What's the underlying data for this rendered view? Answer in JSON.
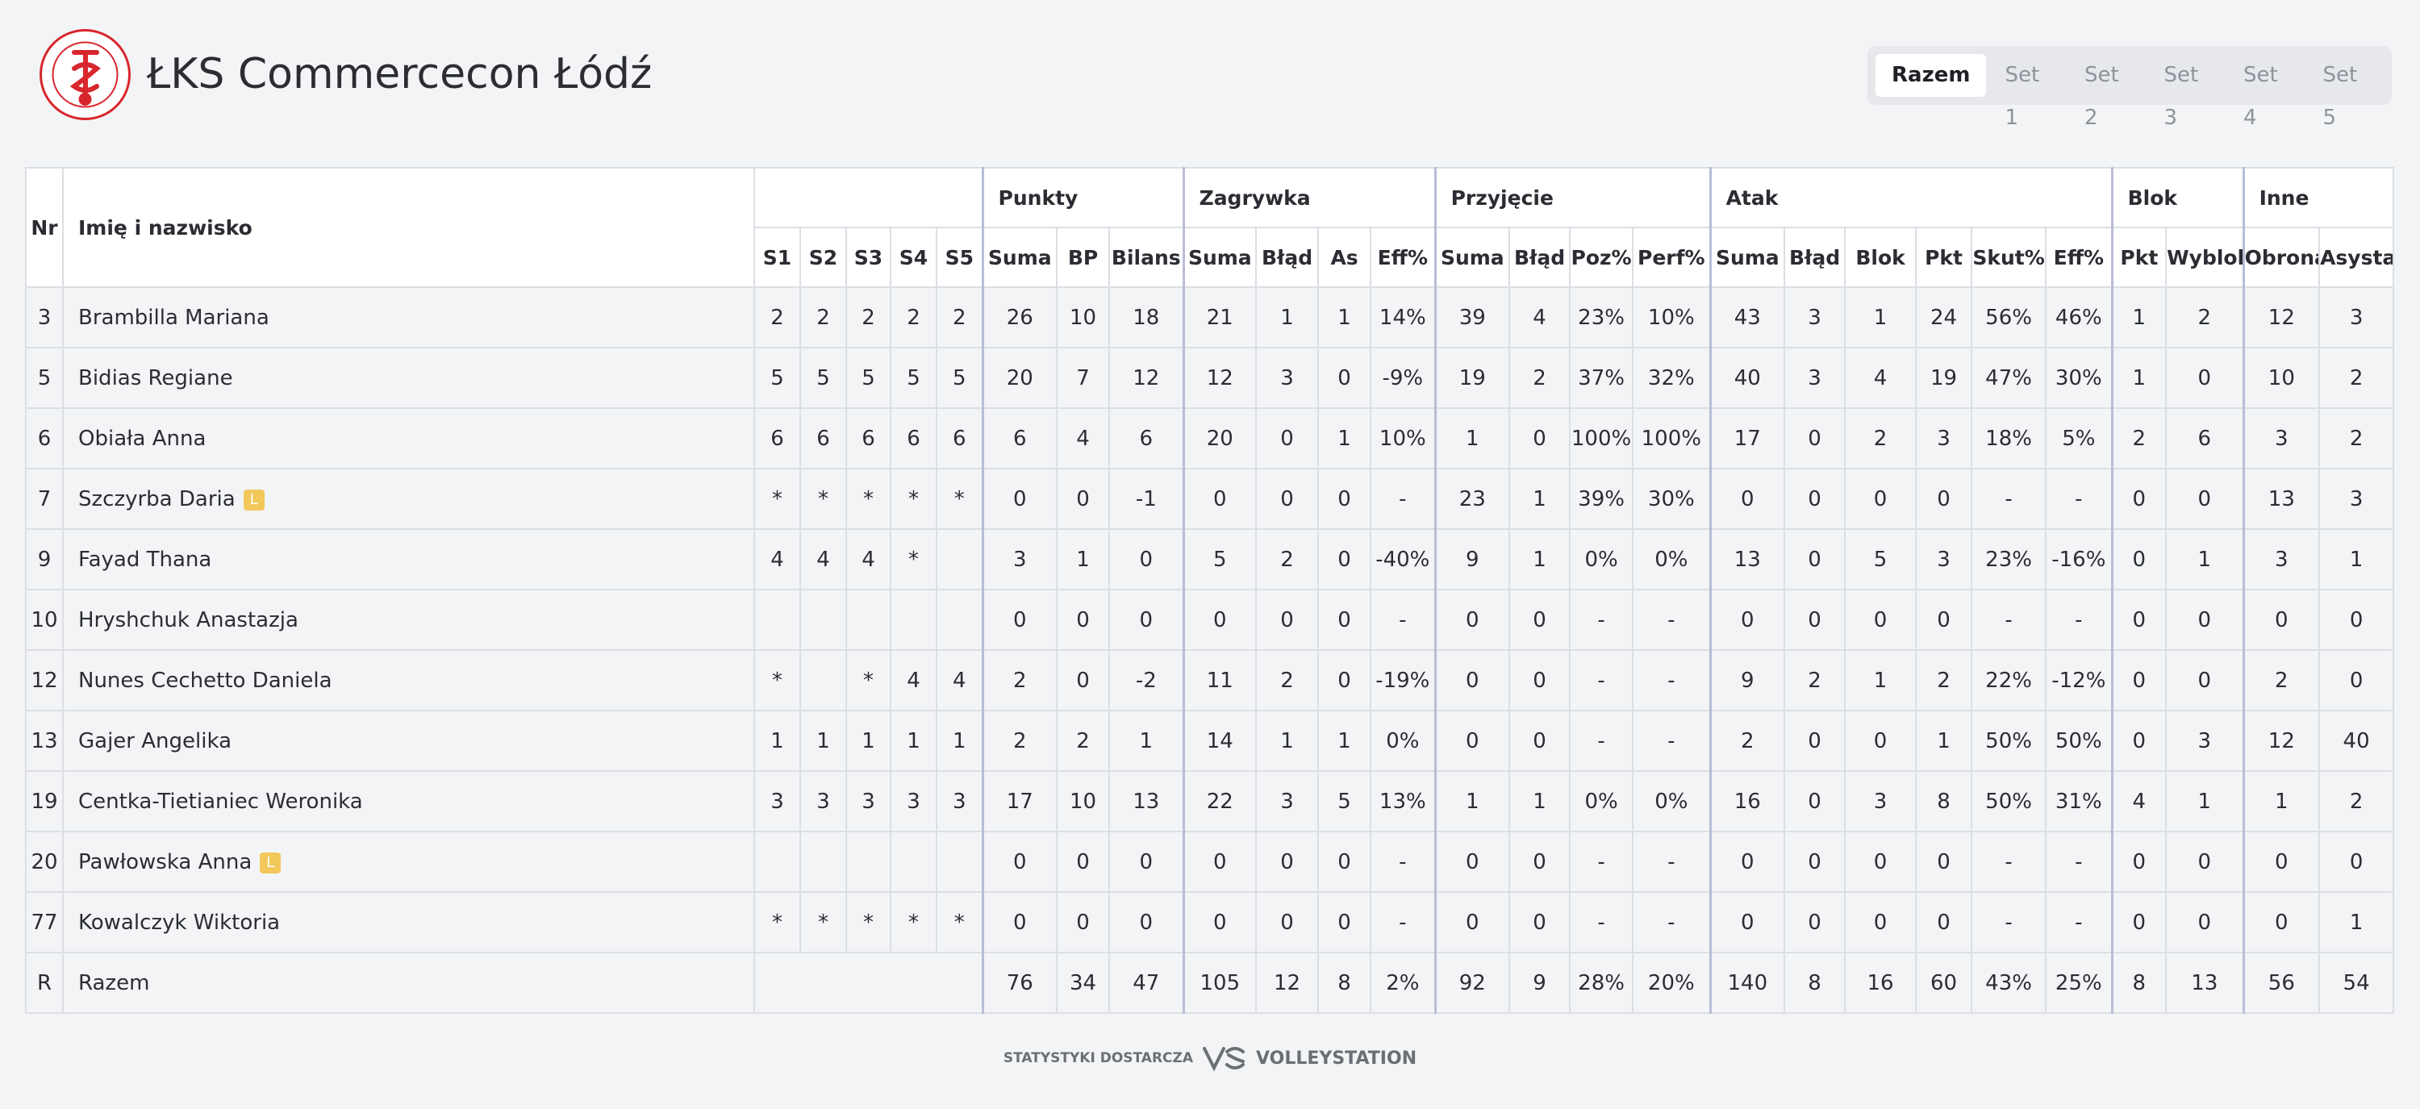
{
  "header": {
    "title": "ŁKS Commercecon Łódź"
  },
  "tabs": [
    "Razem",
    "Set 1",
    "Set 2",
    "Set 3",
    "Set 4",
    "Set 5"
  ],
  "table": {
    "head_nr": "Nr",
    "head_name": "Imię i nazwisko",
    "groups": [
      {
        "label": null,
        "columns": [
          "S1",
          "S2",
          "S3",
          "S4",
          "S5"
        ]
      },
      {
        "label": "Punkty",
        "columns": [
          "Suma",
          "BP",
          "Bilans"
        ]
      },
      {
        "label": "Zagrywka",
        "columns": [
          "Suma",
          "Błąd",
          "As",
          "Eff%"
        ]
      },
      {
        "label": "Przyjęcie",
        "columns": [
          "Suma",
          "Błąd",
          "Poz%",
          "Perf%"
        ]
      },
      {
        "label": "Atak",
        "columns": [
          "Suma",
          "Błąd",
          "Blok",
          "Pkt",
          "Skut%",
          "Eff%"
        ]
      },
      {
        "label": "Blok",
        "columns": [
          "Pkt",
          "Wyblok"
        ]
      },
      {
        "label": "Inne",
        "columns": [
          "Obrona",
          "Asysta"
        ]
      }
    ],
    "rows": [
      {
        "nr": "3",
        "name": "Brambilla Mariana",
        "sets": [
          "2",
          "2",
          "2",
          "2",
          "2"
        ],
        "stats": [
          "26",
          "10",
          "18",
          "21",
          "1",
          "1",
          "14%",
          "39",
          "4",
          "23%",
          "10%",
          "43",
          "3",
          "1",
          "24",
          "56%",
          "46%",
          "1",
          "2",
          "12",
          "3"
        ]
      },
      {
        "nr": "5",
        "name": "Bidias Regiane",
        "sets": [
          "5",
          "5",
          "5",
          "5",
          "5"
        ],
        "stats": [
          "20",
          "7",
          "12",
          "12",
          "3",
          "0",
          "-9%",
          "19",
          "2",
          "37%",
          "32%",
          "40",
          "3",
          "4",
          "19",
          "47%",
          "30%",
          "1",
          "0",
          "10",
          "2"
        ]
      },
      {
        "nr": "6",
        "name": "Obiała Anna",
        "sets": [
          "6",
          "6",
          "6",
          "6",
          "6"
        ],
        "stats": [
          "6",
          "4",
          "6",
          "20",
          "0",
          "1",
          "10%",
          "1",
          "0",
          "100%",
          "100%",
          "17",
          "0",
          "2",
          "3",
          "18%",
          "5%",
          "2",
          "6",
          "3",
          "2"
        ]
      },
      {
        "nr": "7",
        "name": "Szczyrba Daria",
        "badge": "L",
        "sets": [
          "*",
          "*",
          "*",
          "*",
          "*"
        ],
        "stats": [
          "0",
          "0",
          "-1",
          "0",
          "0",
          "0",
          "-",
          "23",
          "1",
          "39%",
          "30%",
          "0",
          "0",
          "0",
          "0",
          "-",
          "-",
          "0",
          "0",
          "13",
          "3"
        ]
      },
      {
        "nr": "9",
        "name": "Fayad Thana",
        "sets": [
          "4",
          "4",
          "4",
          "*",
          null
        ],
        "stats": [
          "3",
          "1",
          "0",
          "5",
          "2",
          "0",
          "-40%",
          "9",
          "1",
          "0%",
          "0%",
          "13",
          "0",
          "5",
          "3",
          "23%",
          "-16%",
          "0",
          "1",
          "3",
          "1"
        ]
      },
      {
        "nr": "10",
        "name": "Hryshchuk Anastazja",
        "sets": [
          null,
          null,
          null,
          null,
          null
        ],
        "stats": [
          "0",
          "0",
          "0",
          "0",
          "0",
          "0",
          "-",
          "0",
          "0",
          "-",
          "-",
          "0",
          "0",
          "0",
          "0",
          "-",
          "-",
          "0",
          "0",
          "0",
          "0"
        ]
      },
      {
        "nr": "12",
        "name": "Nunes Cechetto Daniela",
        "sets": [
          "*",
          null,
          "*",
          "4",
          "4"
        ],
        "stats": [
          "2",
          "0",
          "-2",
          "11",
          "2",
          "0",
          "-19%",
          "0",
          "0",
          "-",
          "-",
          "9",
          "2",
          "1",
          "2",
          "22%",
          "-12%",
          "0",
          "0",
          "2",
          "0"
        ]
      },
      {
        "nr": "13",
        "name": "Gajer Angelika",
        "sets": [
          "1",
          "1",
          "1",
          "1",
          "1"
        ],
        "stats": [
          "2",
          "2",
          "1",
          "14",
          "1",
          "1",
          "0%",
          "0",
          "0",
          "-",
          "-",
          "2",
          "0",
          "0",
          "1",
          "50%",
          "50%",
          "0",
          "3",
          "12",
          "40"
        ]
      },
      {
        "nr": "19",
        "name": "Centka-Tietianiec Weronika",
        "sets": [
          "3",
          "3",
          "3",
          "3",
          "3"
        ],
        "stats": [
          "17",
          "10",
          "13",
          "22",
          "3",
          "5",
          "13%",
          "1",
          "1",
          "0%",
          "0%",
          "16",
          "0",
          "3",
          "8",
          "50%",
          "31%",
          "4",
          "1",
          "1",
          "2"
        ]
      },
      {
        "nr": "20",
        "name": "Pawłowska Anna",
        "badge": "L",
        "sets": [
          null,
          null,
          null,
          null,
          null
        ],
        "stats": [
          "0",
          "0",
          "0",
          "0",
          "0",
          "0",
          "-",
          "0",
          "0",
          "-",
          "-",
          "0",
          "0",
          "0",
          "0",
          "-",
          "-",
          "0",
          "0",
          "0",
          "0"
        ]
      },
      {
        "nr": "77",
        "name": "Kowalczyk Wiktoria",
        "sets": [
          "*",
          "*",
          "*",
          "*",
          "*"
        ],
        "stats": [
          "0",
          "0",
          "0",
          "0",
          "0",
          "0",
          "-",
          "0",
          "0",
          "-",
          "-",
          "0",
          "0",
          "0",
          "0",
          "-",
          "-",
          "0",
          "0",
          "0",
          "1"
        ]
      },
      {
        "nr": "R",
        "name": "Razem",
        "stats": [
          "76",
          "34",
          "47",
          "105",
          "12",
          "8",
          "2%",
          "92",
          "9",
          "28%",
          "20%",
          "140",
          "8",
          "16",
          "60",
          "43%",
          "25%",
          "8",
          "13",
          "56",
          "54"
        ]
      }
    ]
  },
  "footer": {
    "provided_by": "STATYSTYKI DOSTARCZA",
    "brand": "VOLLEYSTATION"
  }
}
